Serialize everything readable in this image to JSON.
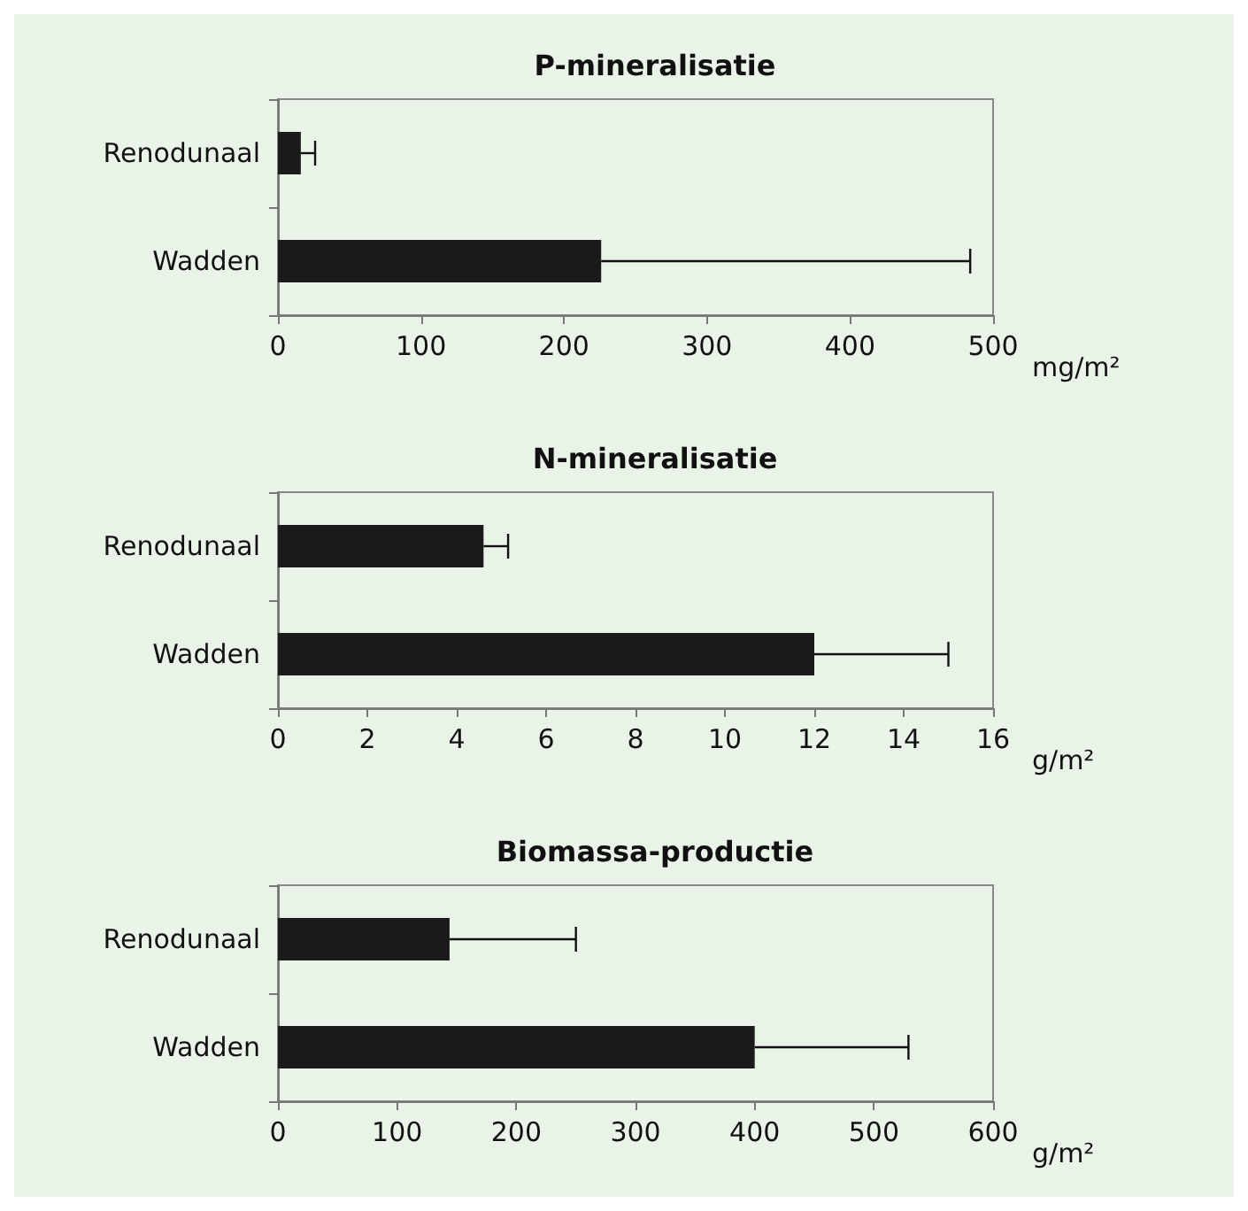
{
  "chart_data": [
    {
      "type": "bar",
      "orientation": "horizontal",
      "title": "P-mineralisatie",
      "xlabel": "mg/m²",
      "categories": [
        "Renodunaal",
        "Wadden"
      ],
      "values": [
        16,
        226
      ],
      "errors": [
        [
          16,
          26
        ],
        [
          226,
          484
        ]
      ],
      "color": "#1a1a1a",
      "xlim": [
        0,
        500
      ],
      "xticks": [
        0,
        100,
        200,
        300,
        400,
        500
      ]
    },
    {
      "type": "bar",
      "orientation": "horizontal",
      "title": "N-mineralisatie",
      "xlabel": "g/m²",
      "categories": [
        "Renodunaal",
        "Wadden"
      ],
      "values": [
        4.6,
        12
      ],
      "errors": [
        [
          4.6,
          5.15
        ],
        [
          12,
          15
        ]
      ],
      "color": "#1a1a1a",
      "xlim": [
        0,
        16
      ],
      "xticks": [
        0,
        2,
        4,
        6,
        8,
        10,
        12,
        14,
        16
      ]
    },
    {
      "type": "bar",
      "orientation": "horizontal",
      "title": "Biomassa-productie",
      "xlabel": "g/m²",
      "categories": [
        "Renodunaal",
        "Wadden"
      ],
      "values": [
        144,
        400
      ],
      "errors": [
        [
          144,
          250
        ],
        [
          400,
          529
        ]
      ],
      "color": "#1a1a1a",
      "xlim": [
        0,
        600
      ],
      "xticks": [
        0,
        100,
        200,
        300,
        400,
        500,
        600
      ]
    }
  ]
}
